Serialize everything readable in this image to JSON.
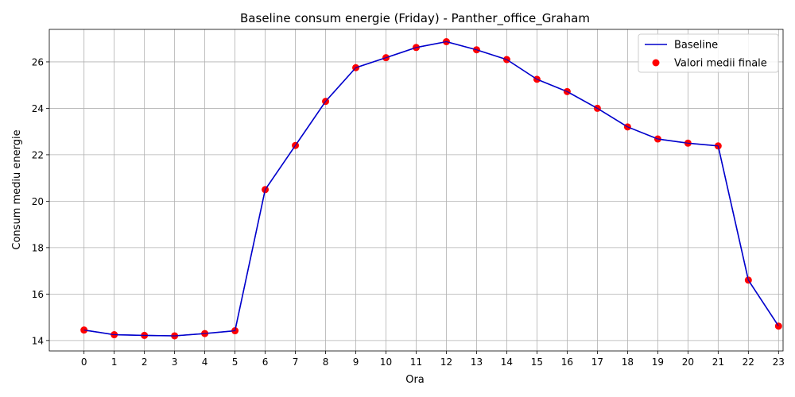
{
  "chart_data": {
    "type": "line",
    "title": "Baseline consum energie (Friday) - Panther_office_Graham",
    "xlabel": "Ora",
    "ylabel": "Consum mediu energie",
    "x": [
      0,
      1,
      2,
      3,
      4,
      5,
      6,
      7,
      8,
      9,
      10,
      11,
      12,
      13,
      14,
      15,
      16,
      17,
      18,
      19,
      20,
      21,
      22,
      23
    ],
    "x_tick_labels": [
      "0",
      "1",
      "2",
      "3",
      "4",
      "5",
      "6",
      "7",
      "8",
      "9",
      "10",
      "11",
      "12",
      "13",
      "14",
      "15",
      "16",
      "17",
      "18",
      "19",
      "20",
      "21",
      "22",
      "23"
    ],
    "y_tick_values": [
      14,
      16,
      18,
      20,
      22,
      24,
      26
    ],
    "y_tick_labels": [
      "14",
      "16",
      "18",
      "20",
      "22",
      "24",
      "26"
    ],
    "xlim": [
      -1.15,
      23.15
    ],
    "ylim": [
      13.55,
      27.4
    ],
    "grid": true,
    "legend_position": "top-right",
    "series": [
      {
        "name": "Baseline",
        "kind": "line",
        "color": "#0000cc",
        "values": [
          14.45,
          14.25,
          14.22,
          14.2,
          14.3,
          14.42,
          20.5,
          22.4,
          24.3,
          25.75,
          26.18,
          26.62,
          26.87,
          26.52,
          26.1,
          25.25,
          24.72,
          24.0,
          23.2,
          22.68,
          22.5,
          22.38,
          16.6,
          14.62
        ]
      },
      {
        "name": "Valori medii finale",
        "kind": "scatter",
        "color": "#ff0000",
        "values": [
          14.45,
          14.25,
          14.22,
          14.2,
          14.3,
          14.42,
          20.5,
          22.4,
          24.3,
          25.75,
          26.18,
          26.62,
          26.87,
          26.52,
          26.1,
          25.25,
          24.72,
          24.0,
          23.2,
          22.68,
          22.5,
          22.38,
          16.6,
          14.62
        ]
      }
    ]
  }
}
